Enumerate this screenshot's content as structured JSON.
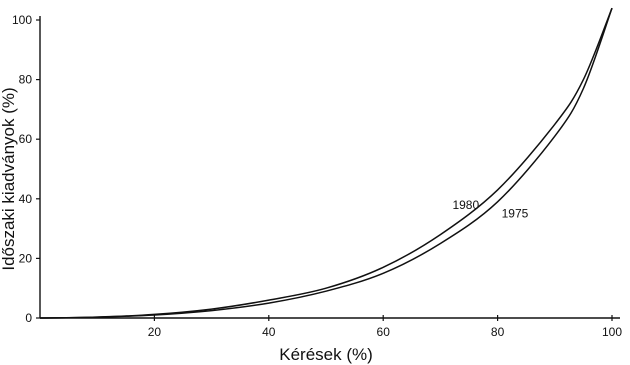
{
  "chart_data": {
    "type": "line",
    "xlabel": "Kérések (%)",
    "ylabel": "Időszaki kiadványok (%)",
    "xlim": [
      0,
      100
    ],
    "ylim": [
      0,
      100
    ],
    "xticks": [
      "20",
      "40",
      "60",
      "80",
      "100"
    ],
    "yticks": [
      "0",
      "20",
      "40",
      "60",
      "80",
      "100"
    ],
    "grid": false,
    "legend": "labels placed next to curves",
    "series": [
      {
        "name": "1980",
        "x": [
          0,
          10,
          20,
          30,
          40,
          50,
          60,
          70,
          80,
          90,
          95,
          100
        ],
        "y": [
          0,
          0.3,
          1.2,
          3,
          6,
          10,
          17,
          28,
          43,
          65,
          80,
          104
        ]
      },
      {
        "name": "1975",
        "x": [
          0,
          10,
          20,
          30,
          40,
          50,
          60,
          70,
          80,
          90,
          95,
          100
        ],
        "y": [
          0,
          0.3,
          1,
          2.5,
          5,
          9,
          15,
          25,
          39,
          61,
          77,
          104
        ]
      }
    ]
  }
}
